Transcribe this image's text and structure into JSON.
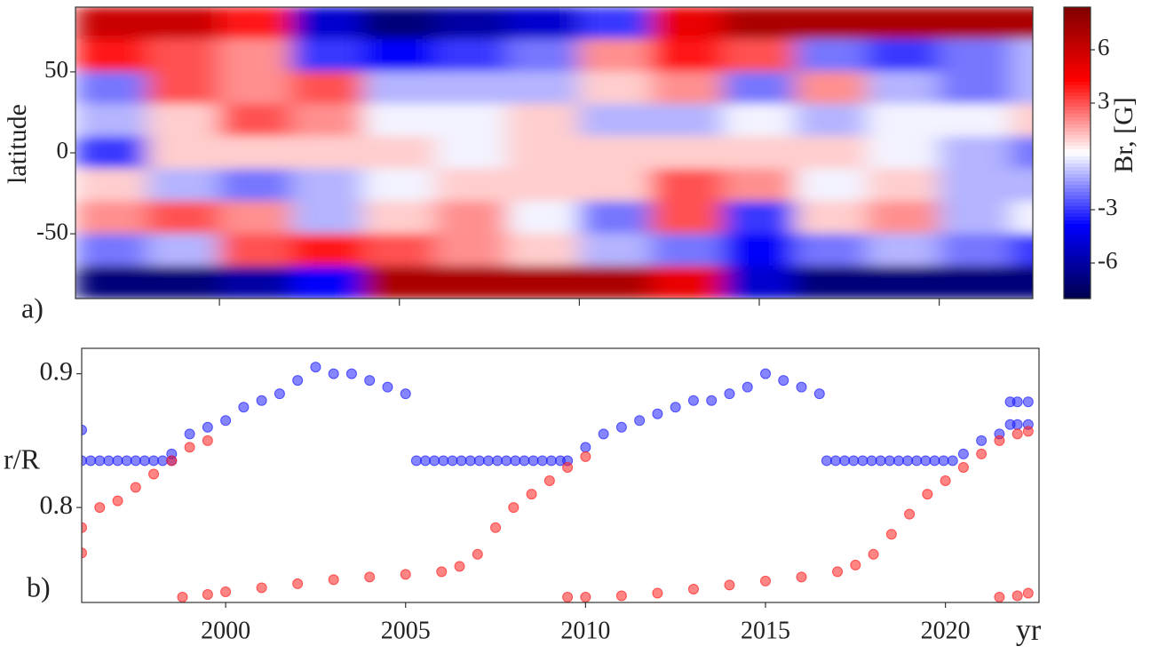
{
  "chart_data": [
    {
      "type": "heatmap",
      "label": "a)",
      "ylabel": "latitude",
      "colormap": "seismic",
      "xlim": [
        1996,
        2022.6
      ],
      "xticks": [
        2000,
        2005,
        2010,
        2015,
        2020
      ],
      "ylim": [
        -90,
        90
      ],
      "yticks": [
        -50,
        0,
        50
      ],
      "x": [
        1996,
        1998,
        2000,
        2002,
        2004,
        2006,
        2008,
        2010,
        2012,
        2014,
        2016,
        2018,
        2020,
        2022
      ],
      "y": [
        80,
        60,
        40,
        20,
        0,
        -20,
        -40,
        -60,
        -80
      ],
      "values": [
        [
          6,
          6,
          4,
          -5,
          -7,
          -6,
          -5,
          -3,
          5,
          7,
          7,
          7,
          7,
          7
        ],
        [
          4,
          3,
          2,
          -3,
          -4,
          -3,
          -2,
          2,
          4,
          3,
          -2,
          -3,
          -2,
          -1
        ],
        [
          -2,
          3,
          2,
          3,
          -1,
          -1,
          -1,
          1,
          2,
          -2,
          2,
          -1,
          -2,
          -1
        ],
        [
          -1,
          1,
          3,
          2,
          0,
          0,
          1,
          -1,
          -1,
          0,
          -1,
          0,
          0,
          1
        ],
        [
          -3,
          1,
          1,
          1,
          1,
          0,
          1,
          1,
          1,
          1,
          1,
          0,
          -1,
          -2
        ],
        [
          1,
          -1,
          -2,
          -1,
          0,
          1,
          1,
          1,
          3,
          2,
          0,
          1,
          -1,
          -1
        ],
        [
          2,
          3,
          2,
          -1,
          1,
          2,
          0,
          -2,
          3,
          -3,
          1,
          2,
          -1,
          0
        ],
        [
          -2,
          -1,
          3,
          4,
          3,
          2,
          1,
          -1,
          -2,
          -4,
          -2,
          -1,
          -2,
          -3
        ],
        [
          -7,
          -7,
          -6,
          -4,
          7,
          7,
          7,
          7,
          5,
          -5,
          -7,
          -7,
          -7,
          -7
        ]
      ],
      "colorbar": {
        "label": "Br, [G]",
        "clim": [
          -8,
          8.4
        ],
        "ticks": [
          6,
          3,
          -3,
          -6
        ]
      }
    },
    {
      "type": "scatter",
      "label": "b)",
      "ylabel": "r/R",
      "xlabel": "yr",
      "xlim": [
        1996,
        2022.6
      ],
      "xticks": [
        2000,
        2005,
        2010,
        2015,
        2020
      ],
      "ylim": [
        0.729,
        0.919
      ],
      "yticks": [
        0.8,
        0.9
      ],
      "series": [
        {
          "color": "#2020ff",
          "x": [
            1996,
            1996,
            1996.25,
            1996.5,
            1996.75,
            1997,
            1997.25,
            1997.5,
            1997.75,
            1998,
            1998.25,
            1998.5,
            1998.5,
            1999,
            1999.5,
            2000,
            2000.5,
            2001,
            2001.5,
            2002,
            2002.5,
            2003,
            2003.5,
            2004,
            2004.5,
            2005,
            2005.3,
            2005.55,
            2005.8,
            2006.05,
            2006.3,
            2006.55,
            2006.8,
            2007.05,
            2007.3,
            2007.55,
            2007.8,
            2008.05,
            2008.3,
            2008.55,
            2008.8,
            2009.05,
            2009.3,
            2009.5,
            2010,
            2010.5,
            2011,
            2011.5,
            2012,
            2012.5,
            2013,
            2013.5,
            2014,
            2014.5,
            2015,
            2015.5,
            2016,
            2016.5,
            2016.7,
            2016.95,
            2017.2,
            2017.45,
            2017.7,
            2017.95,
            2018.2,
            2018.45,
            2018.7,
            2018.95,
            2019.2,
            2019.45,
            2019.7,
            2019.95,
            2020.2,
            2020.5,
            2021,
            2021.5,
            2021.8,
            2022,
            2022.3,
            2021.8,
            2022,
            2022.3
          ],
          "values": [
            0.858,
            0.835,
            0.835,
            0.835,
            0.835,
            0.835,
            0.835,
            0.835,
            0.835,
            0.835,
            0.835,
            0.835,
            0.84,
            0.855,
            0.86,
            0.865,
            0.875,
            0.88,
            0.885,
            0.895,
            0.905,
            0.9,
            0.9,
            0.895,
            0.89,
            0.885,
            0.835,
            0.835,
            0.835,
            0.835,
            0.835,
            0.835,
            0.835,
            0.835,
            0.835,
            0.835,
            0.835,
            0.835,
            0.835,
            0.835,
            0.835,
            0.835,
            0.835,
            0.835,
            0.845,
            0.855,
            0.86,
            0.865,
            0.87,
            0.875,
            0.88,
            0.88,
            0.885,
            0.89,
            0.9,
            0.895,
            0.89,
            0.885,
            0.835,
            0.835,
            0.835,
            0.835,
            0.835,
            0.835,
            0.835,
            0.835,
            0.835,
            0.835,
            0.835,
            0.835,
            0.835,
            0.835,
            0.835,
            0.84,
            0.85,
            0.855,
            0.879,
            0.879,
            0.879,
            0.862,
            0.862,
            0.862
          ]
        },
        {
          "color": "#ff2020",
          "x": [
            1996,
            1996,
            1996.5,
            1997,
            1997.5,
            1998,
            1998.5,
            1999,
            1999.5,
            1998.8,
            1999.5,
            2000,
            2001,
            2002,
            2003,
            2004,
            2005,
            2006,
            2006.5,
            2007,
            2007.5,
            2008,
            2008.5,
            2009,
            2009.5,
            2010,
            2009.5,
            2010,
            2011,
            2012,
            2013,
            2014,
            2015,
            2016,
            2017,
            2017.5,
            2018,
            2018.5,
            2019,
            2019.5,
            2020,
            2020.5,
            2021,
            2021.5,
            2022,
            2022.3,
            2021.5,
            2022,
            2022.3
          ],
          "values": [
            0.766,
            0.785,
            0.8,
            0.805,
            0.815,
            0.825,
            0.835,
            0.845,
            0.85,
            0.733,
            0.735,
            0.737,
            0.74,
            0.743,
            0.746,
            0.748,
            0.75,
            0.752,
            0.756,
            0.765,
            0.785,
            0.8,
            0.81,
            0.82,
            0.83,
            0.838,
            0.733,
            0.733,
            0.734,
            0.736,
            0.739,
            0.742,
            0.745,
            0.748,
            0.752,
            0.757,
            0.765,
            0.78,
            0.795,
            0.81,
            0.82,
            0.83,
            0.84,
            0.85,
            0.855,
            0.857,
            0.733,
            0.734,
            0.736
          ]
        }
      ]
    }
  ]
}
